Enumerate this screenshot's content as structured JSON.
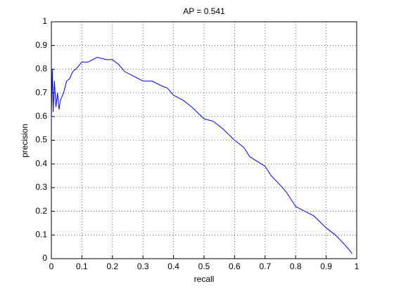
{
  "chart_data": {
    "type": "line",
    "title": "AP = 0.541",
    "x_label": "recall",
    "y_label": "precision",
    "x": [
      0,
      0.003,
      0.006,
      0.01,
      0.015,
      0.02,
      0.025,
      0.03,
      0.04,
      0.05,
      0.06,
      0.07,
      0.08,
      0.1,
      0.12,
      0.15,
      0.18,
      0.2,
      0.22,
      0.24,
      0.27,
      0.3,
      0.33,
      0.36,
      0.38,
      0.4,
      0.43,
      0.46,
      0.5,
      0.53,
      0.56,
      0.6,
      0.63,
      0.65,
      0.7,
      0.72,
      0.75,
      0.77,
      0.8,
      0.83,
      0.86,
      0.9,
      0.93,
      0.96,
      0.98,
      0.985
    ],
    "series": [
      {
        "color": "#0000ff",
        "values": [
          0.58,
          0.8,
          0.62,
          0.75,
          0.64,
          0.7,
          0.63,
          0.67,
          0.7,
          0.75,
          0.76,
          0.79,
          0.8,
          0.83,
          0.83,
          0.85,
          0.84,
          0.84,
          0.82,
          0.79,
          0.77,
          0.75,
          0.75,
          0.73,
          0.72,
          0.69,
          0.67,
          0.64,
          0.59,
          0.58,
          0.55,
          0.5,
          0.47,
          0.43,
          0.39,
          0.35,
          0.31,
          0.28,
          0.22,
          0.2,
          0.18,
          0.13,
          0.1,
          0.06,
          0.03,
          0.02
        ]
      }
    ],
    "xlim": [
      0,
      1
    ],
    "ylim": [
      0,
      1
    ],
    "xticks": [
      0,
      0.1,
      0.2,
      0.3,
      0.4,
      0.5,
      0.6,
      0.7,
      0.8,
      0.9,
      1
    ],
    "yticks": [
      0,
      0.1,
      0.2,
      0.3,
      0.4,
      0.5,
      0.6,
      0.7,
      0.8,
      0.9,
      1
    ],
    "grid": true
  }
}
